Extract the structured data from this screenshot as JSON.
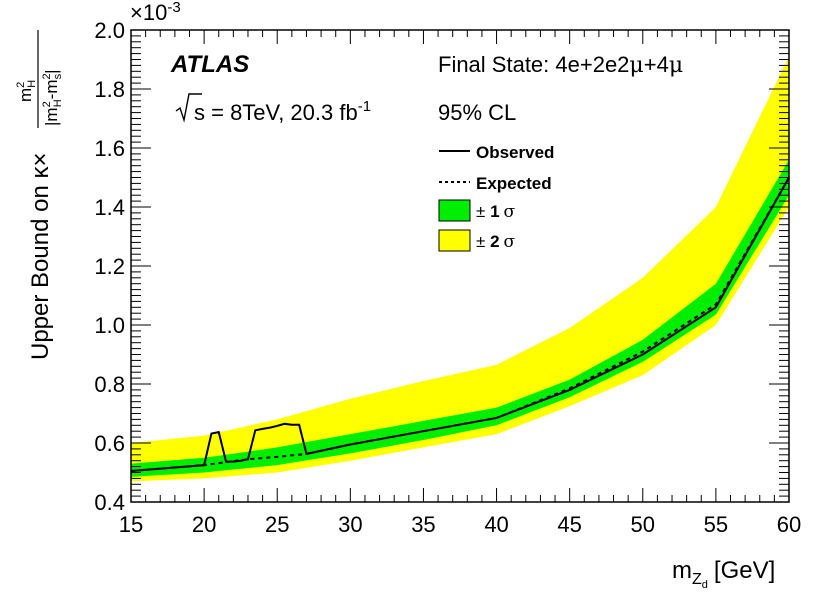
{
  "chart_data": {
    "type": "line",
    "experiment": "ATLAS",
    "energy_text": "s = 8TeV, 20.3 fb",
    "lumi_exp": "-1",
    "final_state_prefix": "Final State: 4e+2e2",
    "final_state_mu1": "μ",
    "final_state_mid": "+4",
    "final_state_mu2": "μ",
    "cl_text": "95% CL",
    "exponent_label": "×10",
    "exponent_power": "-3",
    "xlabel_main": "m",
    "xlabel_sub": "Z",
    "xlabel_subsub": "d",
    "xlabel_unit": "[GeV]",
    "ylabel_prefix": "Upper Bound on κ×",
    "ylabel_num": "m",
    "ylabel_den": "|m",
    "xlim": [
      15,
      60
    ],
    "ylim": [
      0.4,
      2.0
    ],
    "xticks": [
      15,
      20,
      25,
      30,
      35,
      40,
      45,
      50,
      55,
      60
    ],
    "yticks": [
      0.4,
      0.6,
      0.8,
      1.0,
      1.2,
      1.4,
      1.6,
      1.8,
      2.0
    ],
    "ytick_labels": [
      "0.4",
      "0.6",
      "0.8",
      "1.0",
      "1.2",
      "1.4",
      "1.6",
      "1.8",
      "2.0"
    ],
    "legend": {
      "observed": "Observed",
      "expected": "Expected",
      "sigma1_pm": "± ",
      "sigma1_num": "1",
      "sigma2_pm": "± ",
      "sigma2_num": "2",
      "sigma_symbol": "σ"
    },
    "colors": {
      "sigma1": "#00ee00",
      "sigma2": "#ffff00",
      "observed": "#000000",
      "expected": "#000000"
    },
    "series": [
      {
        "name": "Observed",
        "x": [
          15,
          20,
          20.5,
          21,
          21.5,
          22,
          22.5,
          23,
          23.5,
          24,
          24.5,
          25,
          25.5,
          26,
          26.5,
          27,
          30,
          35,
          40,
          45,
          50,
          55,
          60
        ],
        "y": [
          0.505,
          0.525,
          0.632,
          0.637,
          0.537,
          0.537,
          0.54,
          0.545,
          0.643,
          0.648,
          0.652,
          0.658,
          0.665,
          0.662,
          0.662,
          0.563,
          0.595,
          0.64,
          0.685,
          0.78,
          0.9,
          1.06,
          1.5
        ]
      },
      {
        "name": "Expected",
        "x": [
          15,
          20,
          23,
          25,
          27,
          30,
          35,
          40,
          45,
          50,
          55,
          60
        ],
        "y": [
          0.505,
          0.525,
          0.545,
          0.553,
          0.563,
          0.595,
          0.64,
          0.685,
          0.785,
          0.91,
          1.07,
          1.5
        ]
      }
    ],
    "bands": {
      "x": [
        15,
        20,
        25,
        30,
        35,
        40,
        45,
        50,
        55,
        60
      ],
      "sigma1_low": [
        0.485,
        0.5,
        0.525,
        0.565,
        0.61,
        0.66,
        0.755,
        0.875,
        1.035,
        1.44
      ],
      "sigma1_high": [
        0.53,
        0.55,
        0.585,
        0.63,
        0.675,
        0.72,
        0.815,
        0.95,
        1.14,
        1.56
      ],
      "sigma2_low": [
        0.47,
        0.48,
        0.5,
        0.54,
        0.585,
        0.63,
        0.725,
        0.83,
        1.0,
        1.4
      ],
      "sigma2_high": [
        0.6,
        0.625,
        0.68,
        0.75,
        0.81,
        0.865,
        0.99,
        1.16,
        1.4,
        1.91
      ]
    }
  }
}
